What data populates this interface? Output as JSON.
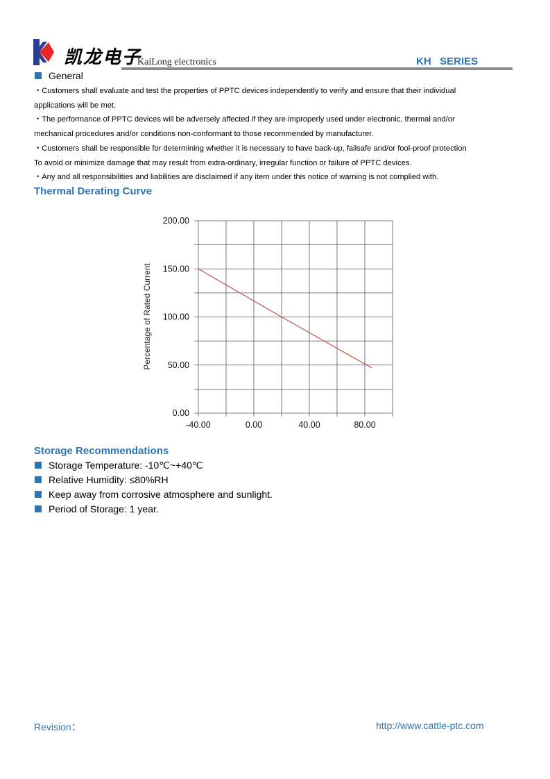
{
  "header": {
    "logo_text_cn": "凯龙电子",
    "logo_text_en": "KaiLong electronics",
    "series": "KH   SERIES",
    "colors": {
      "brand_blue": "#2e75b6",
      "logo_red": "#e8262a",
      "logo_navy": "#2a3d8f"
    }
  },
  "general": {
    "heading": "General",
    "paragraphs": [
      "・Customers shall evaluate and test the properties of PPTC devices independently to verify and ensure that their individual",
      "applications will be met.",
      "・The performance of PPTC devices will be adversely affected if they are improperly used under electronic, thermal and/or",
      "mechanical procedures and/or conditions non-conformant to those recommended by manufacturer.",
      "・Customers shall be responsible for determining whether it is necessary to have back-up, failsafe and/or fool-proof protection",
      "To avoid or minimize damage that may result from extra-ordinary, irregular function or failure of PPTC devices.",
      "・Any and all responsibilities and liabilities are disclaimed if any item under this notice of warning is not complied with."
    ]
  },
  "thermal": {
    "heading": "Thermal Derating Curve"
  },
  "chart_data": {
    "type": "line",
    "title": "",
    "xlabel": "",
    "ylabel": "Percentage of Rated Current",
    "xlim": [
      -40,
      100
    ],
    "ylim": [
      0,
      200
    ],
    "x_ticks": [
      "-40.00",
      "0.00",
      "40.00",
      "80.00"
    ],
    "x_tick_values": [
      -40,
      0,
      40,
      80
    ],
    "y_ticks": [
      "0.00",
      "50.00",
      "100.00",
      "150.00",
      "200.00"
    ],
    "y_tick_values": [
      0,
      50,
      100,
      150,
      200
    ],
    "grid": true,
    "x_grid_step": 20,
    "y_grid_step": 25,
    "series": [
      {
        "color": "#c0504d",
        "points": [
          [
            -40,
            150
          ],
          [
            20,
            100
          ],
          [
            85,
            47
          ]
        ]
      }
    ]
  },
  "storage": {
    "heading": "Storage Recommendations",
    "items": [
      "Storage Temperature: -10℃~+40℃",
      "Relative Humidity: ≤80%RH",
      "Keep away from corrosive atmosphere and sunlight.",
      "Period of Storage: 1 year."
    ]
  },
  "footer": {
    "revision": "Revision：",
    "url": "http://www.cattle-ptc.com"
  }
}
